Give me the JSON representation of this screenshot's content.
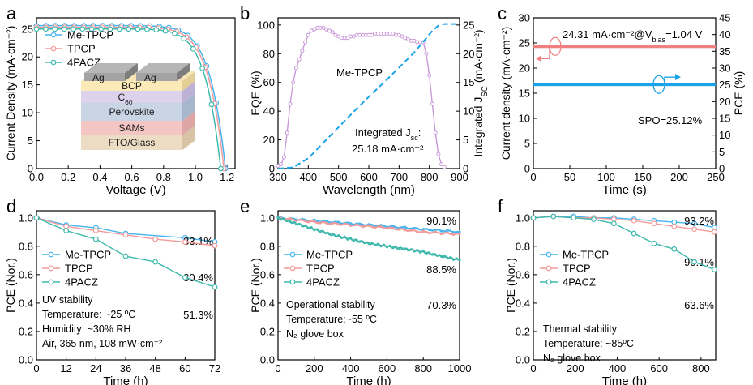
{
  "colors": {
    "me": "#47b4ee",
    "tpcp": "#f29a9a",
    "pacz": "#3fb9ad",
    "evo": "#c99ad9",
    "cur": "#f08080",
    "cyan": "#1aa3e8",
    "scan": "#48b2ec"
  },
  "chart_data": [
    {
      "id": "a",
      "panel_label": "a",
      "type": "line",
      "xlabel": "Voltage (V)",
      "ylabel": "Current Density (mA·cm⁻²)",
      "xlim": [
        0,
        1.25
      ],
      "ylim": [
        0,
        27
      ],
      "xticks": [
        "0.0",
        "0.2",
        "0.4",
        "0.6",
        "0.8",
        "1.0",
        "1.2"
      ],
      "yticks": [
        "0",
        "5",
        "10",
        "15",
        "20",
        "25"
      ],
      "series": [
        {
          "name": "Me-TPCP",
          "voc": 1.19,
          "jsc": 25.6
        },
        {
          "name": "TPCP",
          "voc": 1.18,
          "jsc": 25.3
        },
        {
          "name": "4PACZ",
          "voc": 1.16,
          "jsc": 25.0
        }
      ],
      "stack": [
        "Ag",
        "Ag",
        "BCP",
        "C",
        "60",
        "Perovskite",
        "SAMs",
        "FTO/Glass"
      ]
    },
    {
      "id": "b",
      "panel_label": "b",
      "type": "line",
      "xlabel": "Wavelength (nm)",
      "ylabel": "EQE (%)",
      "ylabel_right": "Integrated J",
      "ylabel_right_sub": "SC",
      "ylabel_right_unit": " (mA·cm⁻²)",
      "xlim": [
        300,
        900
      ],
      "ylim": [
        0,
        105
      ],
      "ylim_right": [
        0,
        26.25
      ],
      "xticks": [
        "300",
        "400",
        "500",
        "600",
        "700",
        "800",
        "900"
      ],
      "yticks": [
        "0",
        "20",
        "40",
        "60",
        "80",
        "100"
      ],
      "yticks_right": [
        "0",
        "5",
        "10",
        "15",
        "20",
        "25"
      ],
      "series_name": "Me-TPCP",
      "eqe": {
        "x": [
          300,
          310,
          320,
          330,
          340,
          350,
          360,
          370,
          380,
          390,
          400,
          410,
          420,
          430,
          440,
          450,
          460,
          470,
          480,
          490,
          500,
          510,
          520,
          530,
          540,
          550,
          560,
          570,
          580,
          590,
          600,
          610,
          620,
          630,
          640,
          650,
          660,
          670,
          680,
          690,
          700,
          710,
          720,
          730,
          740,
          750,
          760,
          770,
          780,
          790,
          800,
          810,
          820,
          830,
          840,
          850
        ],
        "y": [
          2,
          3,
          8,
          25,
          45,
          60,
          70,
          76,
          82,
          88,
          93,
          96,
          97,
          98,
          98,
          98,
          97,
          96,
          95,
          93,
          92,
          91,
          91,
          91,
          92,
          92,
          93,
          93,
          93,
          93,
          93,
          93,
          94,
          94,
          94,
          94,
          94,
          94,
          94,
          93,
          93,
          92,
          91,
          90,
          89,
          89,
          88,
          88,
          88,
          80,
          65,
          45,
          25,
          10,
          3,
          1
        ]
      },
      "integ": {
        "x": [
          300,
          350,
          400,
          450,
          500,
          550,
          600,
          650,
          700,
          750,
          790,
          810,
          830,
          850,
          900
        ],
        "y": [
          0,
          0.2,
          1.8,
          4.5,
          7.2,
          9.9,
          12.5,
          15.0,
          17.6,
          20.2,
          22.7,
          24.0,
          24.9,
          25.18,
          25.18
        ]
      },
      "annotation": {
        "line1": "Integrated J",
        "sub": "sc",
        "line1_end": ":",
        "line2": "25.18 mA·cm⁻²"
      }
    },
    {
      "id": "c",
      "panel_label": "c",
      "type": "line",
      "xlabel": "Time (s)",
      "ylabel": "Current density (mA·cm⁻²)",
      "ylabel_right": "PCE (%)",
      "xlim": [
        0,
        250
      ],
      "ylim": [
        0,
        30
      ],
      "ylim_right": [
        0,
        45
      ],
      "xticks": [
        "0",
        "50",
        "100",
        "150",
        "200",
        "250"
      ],
      "yticks": [
        "0",
        "5",
        "10",
        "15",
        "20",
        "25",
        "30"
      ],
      "yticks_right": [
        "0",
        "5",
        "10",
        "15",
        "20",
        "25",
        "30",
        "35",
        "40",
        "45"
      ],
      "series": [
        {
          "name": "Current density",
          "value": 24.31
        },
        {
          "name": "PCE",
          "value": 25.12
        }
      ],
      "annotation_top": "24.31 mA·cm⁻²@V",
      "annotation_top_sub": "bias",
      "annotation_top_end": "=1.04 V",
      "annotation_bottom": "SPO=25.12%"
    },
    {
      "id": "d",
      "panel_label": "d",
      "type": "line",
      "xlabel": "Time (h)",
      "ylabel": "PCE (Nor.)",
      "xlim": [
        0,
        72
      ],
      "ylim": [
        0,
        1.05
      ],
      "xticks": [
        "0",
        "12",
        "24",
        "36",
        "48",
        "60",
        "72"
      ],
      "yticks": [
        "0.0",
        "0.2",
        "0.4",
        "0.6",
        "0.8",
        "1.0"
      ],
      "series": [
        {
          "name": "Me-TPCP",
          "x": [
            0,
            12,
            24,
            36,
            60,
            72
          ],
          "y": [
            1.0,
            0.95,
            0.93,
            0.89,
            0.86,
            0.831
          ],
          "final": "83.1%"
        },
        {
          "name": "TPCP",
          "x": [
            0,
            12,
            24,
            36,
            48,
            60,
            72
          ],
          "y": [
            1.0,
            0.94,
            0.91,
            0.88,
            0.85,
            0.83,
            0.804
          ],
          "final": "80.4%"
        },
        {
          "name": "4PACZ",
          "x": [
            0,
            12,
            24,
            36,
            48,
            60,
            72
          ],
          "y": [
            1.0,
            0.91,
            0.85,
            0.73,
            0.69,
            0.58,
            0.513
          ],
          "final": "51.3%"
        }
      ],
      "conditions": [
        "UV stability",
        "Temperature: ~25 ºC",
        "Humidity: ~30% RH",
        "Air, 365 nm, 108 mW·cm⁻²"
      ]
    },
    {
      "id": "e",
      "panel_label": "e",
      "type": "line",
      "xlabel": "Time (h)",
      "ylabel": "PCE (Nor.)",
      "xlim": [
        0,
        1000
      ],
      "ylim": [
        0,
        1.05
      ],
      "xticks": [
        "0",
        "200",
        "400",
        "600",
        "800",
        "1000"
      ],
      "yticks": [
        "0.0",
        "0.2",
        "0.4",
        "0.6",
        "0.8",
        "1.0"
      ],
      "series": [
        {
          "name": "Me-TPCP",
          "x": [
            0,
            200,
            400,
            600,
            800,
            1000
          ],
          "y": [
            1.0,
            0.98,
            0.96,
            0.94,
            0.92,
            0.901
          ],
          "final": "90.1%"
        },
        {
          "name": "TPCP",
          "x": [
            0,
            200,
            400,
            600,
            800,
            1000
          ],
          "y": [
            1.0,
            0.97,
            0.95,
            0.93,
            0.9,
            0.885
          ],
          "final": "88.5%"
        },
        {
          "name": "4PACZ",
          "x": [
            0,
            100,
            200,
            300,
            400,
            500,
            600,
            700,
            800,
            900,
            1000
          ],
          "y": [
            1.0,
            0.96,
            0.92,
            0.88,
            0.85,
            0.82,
            0.8,
            0.78,
            0.76,
            0.73,
            0.703
          ],
          "final": "70.3%"
        }
      ],
      "conditions": [
        "Operational stability",
        "Temperature:~55 ºC",
        "N₂ glove box"
      ]
    },
    {
      "id": "f",
      "panel_label": "f",
      "type": "line",
      "xlabel": "Time (h)",
      "ylabel": "PCE (Nor.)",
      "xlim": [
        0,
        870
      ],
      "ylim": [
        0,
        1.05
      ],
      "xticks": [
        "0",
        "200",
        "400",
        "600",
        "800"
      ],
      "yticks": [
        "0.0",
        "0.2",
        "0.4",
        "0.6",
        "0.8",
        "1.0"
      ],
      "series": [
        {
          "name": "Me-TPCP",
          "x": [
            0,
            96,
            192,
            288,
            384,
            480,
            576,
            672,
            768,
            864
          ],
          "y": [
            1.0,
            1.01,
            1.01,
            1.0,
            1.0,
            0.99,
            0.98,
            0.97,
            0.96,
            0.932
          ],
          "final": "93.2%"
        },
        {
          "name": "TPCP",
          "x": [
            0,
            96,
            192,
            288,
            384,
            480,
            576,
            672,
            768,
            864
          ],
          "y": [
            1.0,
            1.01,
            1.0,
            1.0,
            0.99,
            0.98,
            0.96,
            0.94,
            0.92,
            0.901
          ],
          "final": "90.1%"
        },
        {
          "name": "4PACZ",
          "x": [
            0,
            96,
            192,
            288,
            384,
            480,
            576,
            672,
            768,
            864
          ],
          "y": [
            1.0,
            1.01,
            1.0,
            0.99,
            0.96,
            0.89,
            0.82,
            0.78,
            0.69,
            0.636
          ],
          "final": "63.6%"
        }
      ],
      "conditions": [
        "Thermal stability",
        "Temperature: ~85ºC",
        "N₂ glove box"
      ]
    }
  ]
}
